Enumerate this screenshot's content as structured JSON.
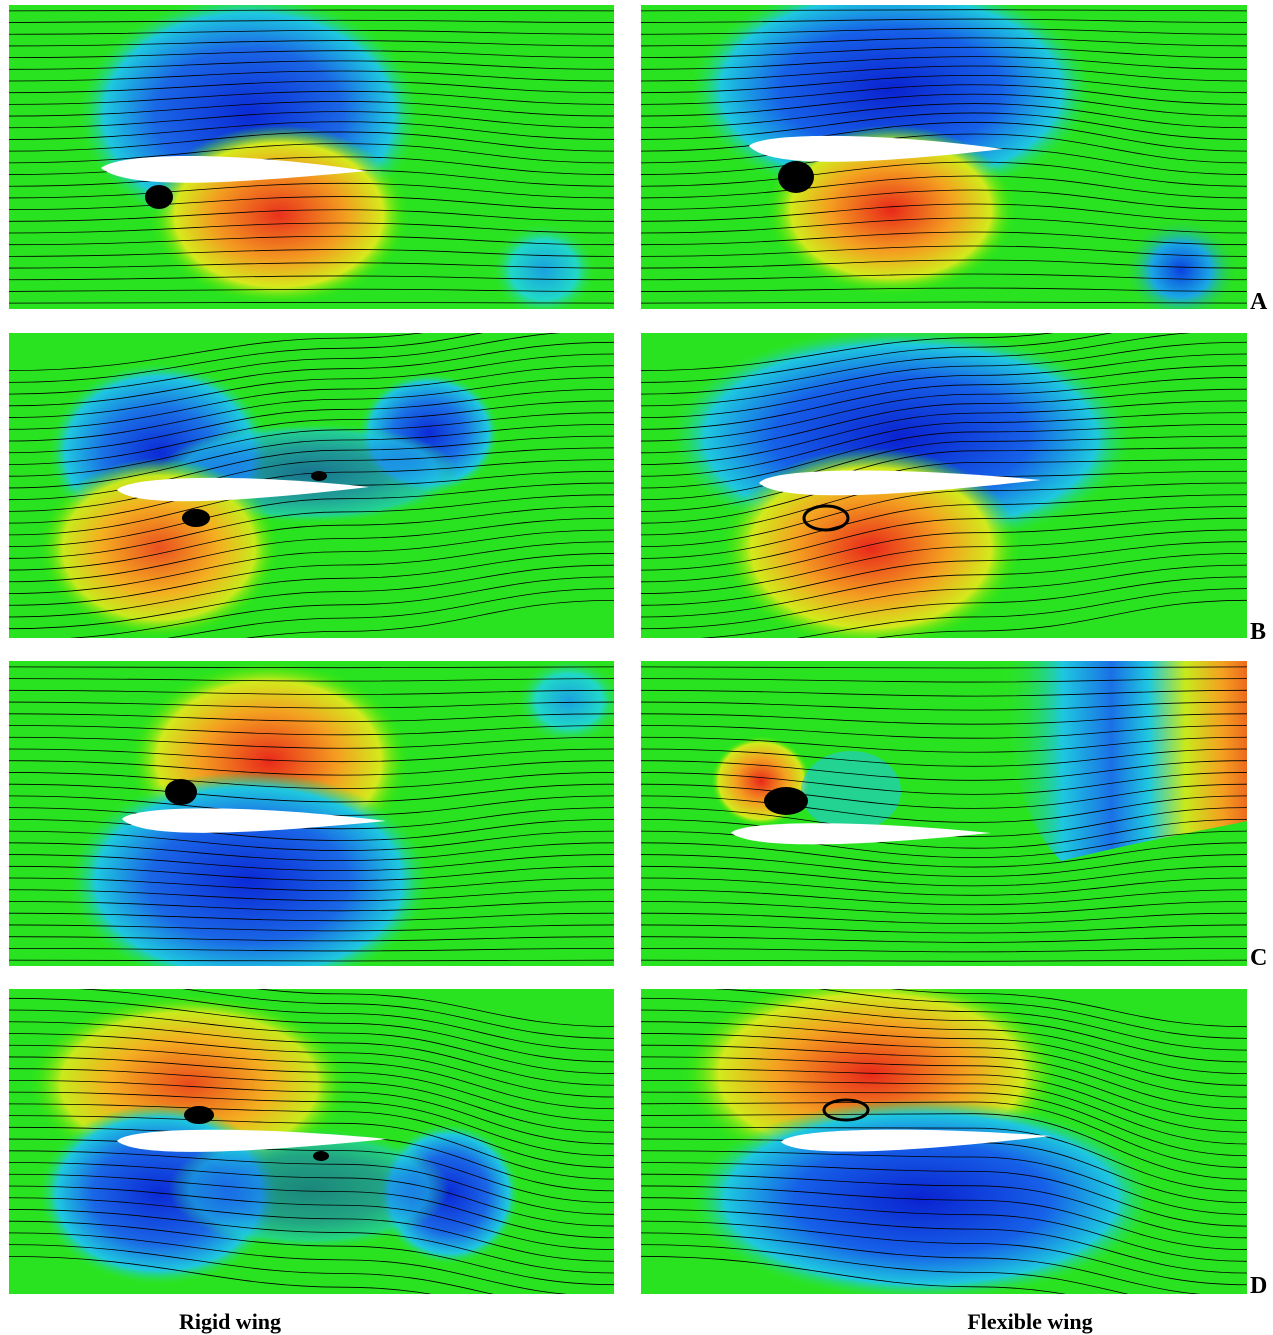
{
  "figure": {
    "row_labels": [
      "A",
      "B",
      "C",
      "D"
    ],
    "column_captions": {
      "left": "Rigid wing",
      "right": "Flexible wing"
    },
    "colors": {
      "high_pressure": "#e8281a",
      "mid": "#22e600",
      "low_pressure": "#0a2fd6",
      "streamline": "#000000",
      "airfoil": "#ffffff"
    }
  }
}
